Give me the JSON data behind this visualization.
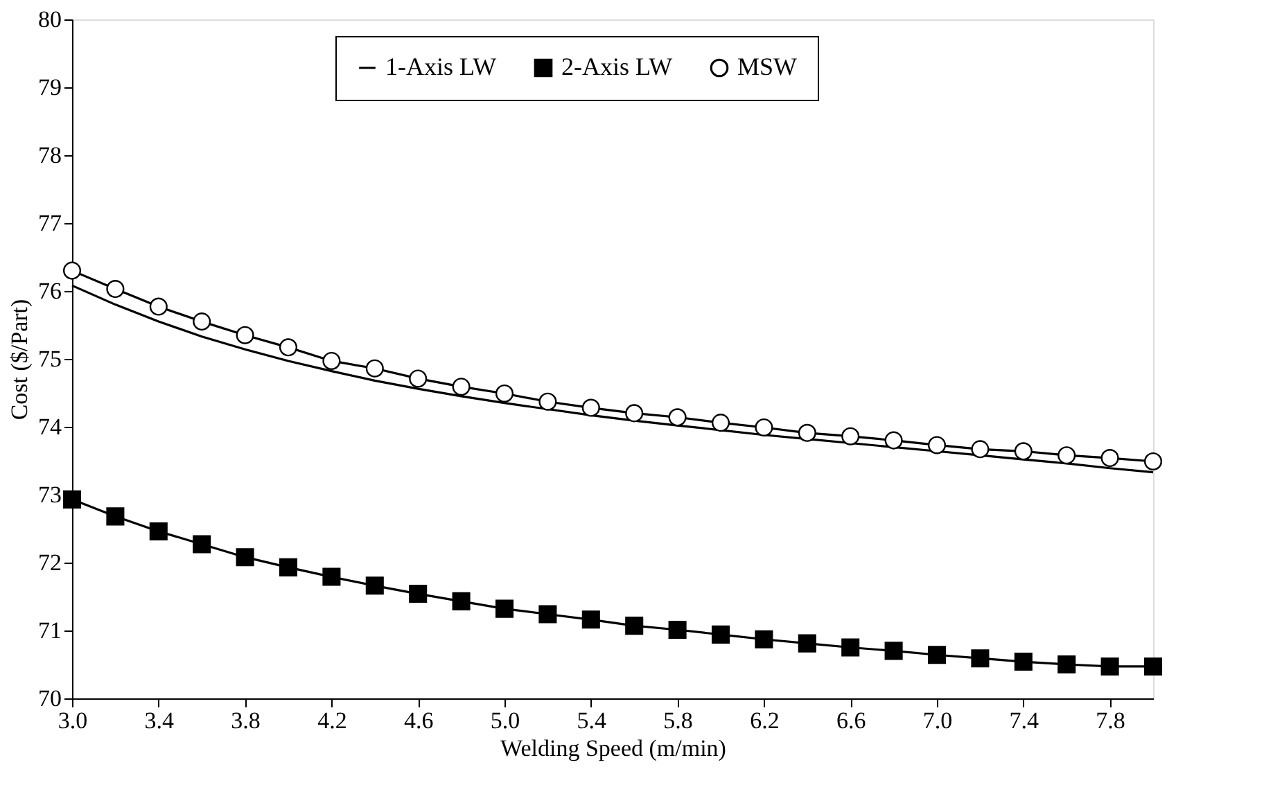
{
  "chart_data": {
    "type": "line",
    "xlabel": "Welding Speed (m/min)",
    "ylabel": "Cost ($/Part)",
    "x": [
      3.0,
      3.2,
      3.4,
      3.6,
      3.8,
      4.0,
      4.2,
      4.4,
      4.6,
      4.8,
      5.0,
      5.2,
      5.4,
      5.6,
      5.8,
      6.0,
      6.2,
      6.4,
      6.6,
      6.8,
      7.0,
      7.2,
      7.4,
      7.6,
      7.8,
      8.0
    ],
    "series": [
      {
        "name": "1-Axis LW",
        "color": "#000000",
        "marker": "none",
        "values": [
          76.08,
          75.8,
          75.55,
          75.33,
          75.14,
          74.97,
          74.82,
          74.68,
          74.56,
          74.45,
          74.35,
          74.26,
          74.17,
          74.09,
          74.02,
          73.95,
          73.88,
          73.82,
          73.76,
          73.7,
          73.64,
          73.58,
          73.52,
          73.46,
          73.39,
          73.33
        ]
      },
      {
        "name": "2-Axis LW",
        "color": "#000000",
        "marker": "square",
        "values": [
          72.93,
          72.68,
          72.46,
          72.27,
          72.08,
          71.93,
          71.79,
          71.66,
          71.54,
          71.43,
          71.32,
          71.24,
          71.16,
          71.07,
          71.01,
          70.94,
          70.87,
          70.81,
          70.75,
          70.7,
          70.64,
          70.59,
          70.54,
          70.5,
          70.47,
          70.47
        ]
      },
      {
        "name": "MSW",
        "color": "#000000",
        "marker": "circle",
        "values": [
          76.3,
          76.03,
          75.77,
          75.55,
          75.35,
          75.17,
          74.97,
          74.86,
          74.71,
          74.59,
          74.49,
          74.37,
          74.28,
          74.2,
          74.14,
          74.06,
          73.99,
          73.91,
          73.86,
          73.8,
          73.73,
          73.67,
          73.64,
          73.58,
          73.54,
          73.49
        ]
      }
    ],
    "xlim": [
      3.0,
      8.0
    ],
    "xticks": [
      {
        "value": 3.0,
        "label": "3.0"
      },
      3.4,
      3.8,
      4.2,
      4.6,
      {
        "value": 5.0,
        "label": "5.0"
      },
      5.4,
      5.8,
      6.2,
      6.6,
      {
        "value": 7.0,
        "label": "7.0"
      },
      7.4,
      7.8
    ],
    "ylim": [
      70,
      80
    ],
    "yticks": [
      70,
      71,
      72,
      73,
      74,
      75,
      76,
      77,
      78,
      79,
      80
    ],
    "grid": false,
    "legend": "top"
  }
}
